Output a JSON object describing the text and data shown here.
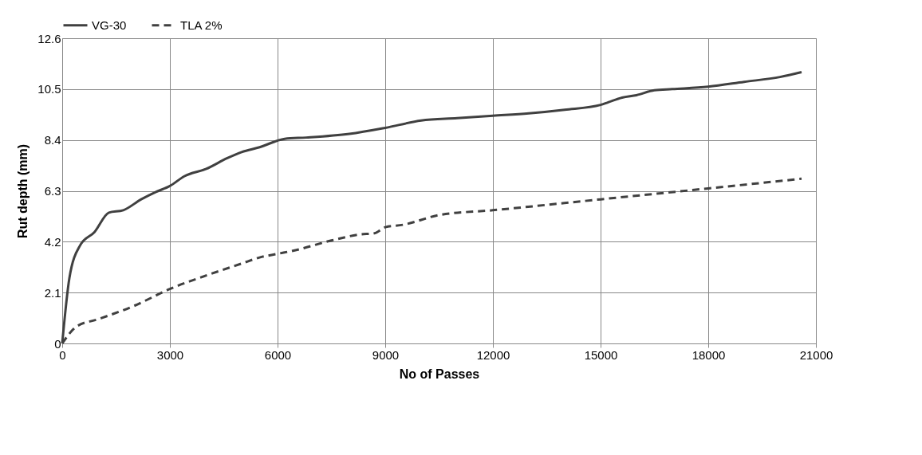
{
  "chart_data": {
    "type": "line",
    "xlabel": "No of Passes",
    "ylabel": "Rut depth (mm)",
    "xlim": [
      0,
      21000
    ],
    "ylim": [
      0,
      12.6
    ],
    "xticks": [
      0,
      3000,
      6000,
      9000,
      12000,
      15000,
      18000,
      21000
    ],
    "yticks": [
      0,
      2.1,
      4.2,
      6.3,
      8.4,
      10.5,
      12.6
    ],
    "grid": true,
    "legend": "top",
    "marker": "none",
    "series": [
      {
        "name": "VG-30",
        "color": "#404040",
        "line_style": "solid",
        "x": [
          0,
          200,
          500,
          900,
          1300,
          1700,
          2200,
          2600,
          3000,
          3400,
          4000,
          4600,
          5000,
          5500,
          6200,
          6800,
          8000,
          9000,
          10000,
          11000,
          12000,
          13000,
          14000,
          15000,
          15200,
          15600,
          16000,
          16500,
          17000,
          18000,
          19000,
          20000,
          20600
        ],
        "values": [
          0,
          2.7,
          4.05,
          4.6,
          5.4,
          5.5,
          5.95,
          6.25,
          6.5,
          6.9,
          7.2,
          7.65,
          7.9,
          8.1,
          8.45,
          8.5,
          8.65,
          8.9,
          9.2,
          9.3,
          9.4,
          9.5,
          9.65,
          9.85,
          9.95,
          10.15,
          10.25,
          10.45,
          10.5,
          10.6,
          10.8,
          11.0,
          11.2
        ]
      },
      {
        "name": "TLA 2%",
        "color": "#404040",
        "line_style": "dashed",
        "x": [
          0,
          400,
          1000,
          2000,
          3000,
          4000,
          5000,
          5500,
          6000,
          6500,
          7500,
          8300,
          8700,
          9000,
          9500,
          10500,
          12000,
          15000,
          18000,
          20600
        ],
        "values": [
          0,
          0.7,
          1.0,
          1.55,
          2.25,
          2.8,
          3.3,
          3.55,
          3.7,
          3.85,
          4.25,
          4.5,
          4.55,
          4.8,
          4.9,
          5.3,
          5.5,
          5.95,
          6.4,
          6.8
        ]
      }
    ]
  }
}
